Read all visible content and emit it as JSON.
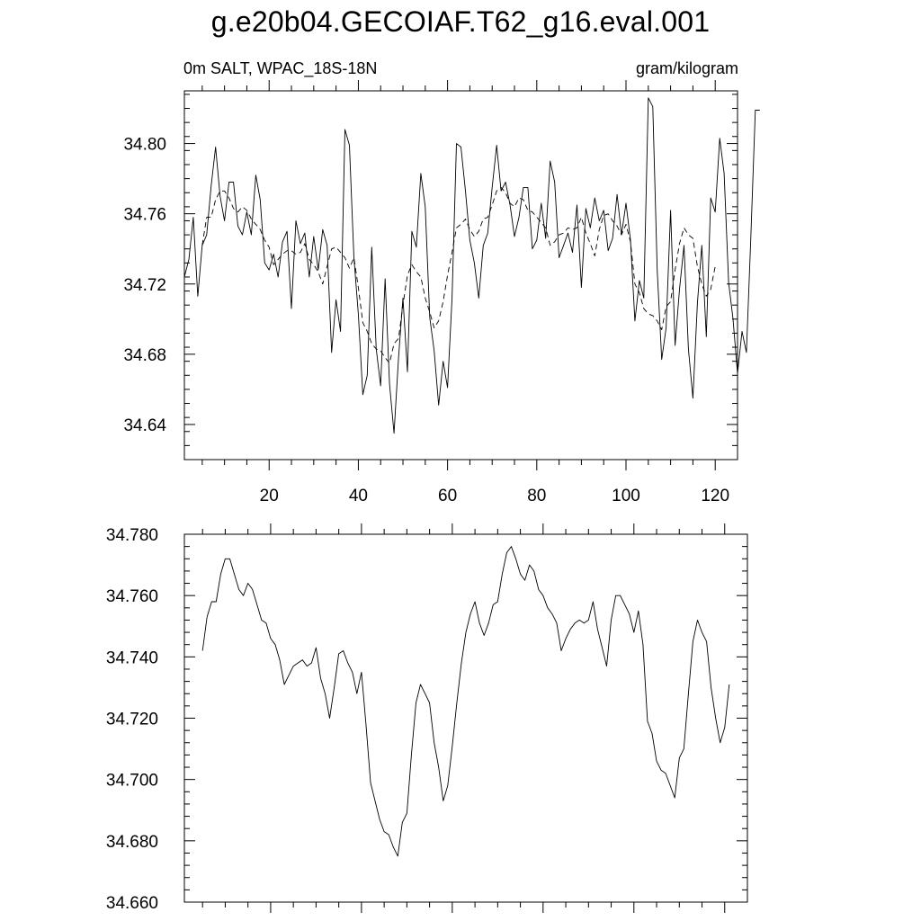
{
  "figure": {
    "title": "g.e20b04.GECOIAF.T62_g16.eval.001",
    "left_label": "0m SALT, WPAC_18S-18N",
    "right_label": "gram/kilogram"
  },
  "chart_data": [
    {
      "type": "line",
      "grid": false,
      "xlim": [
        1,
        125
      ],
      "ylim": [
        34.62,
        34.83
      ],
      "x_ticks": [
        20,
        40,
        60,
        80,
        100,
        120
      ],
      "y_ticks": [
        34.64,
        34.68,
        34.72,
        34.76,
        34.8
      ],
      "y_tick_labels": [
        "34.64",
        "34.68",
        "34.72",
        "34.76",
        "34.80"
      ],
      "x_start": 1,
      "series": [
        {
          "style": "solid",
          "values": [
            34.724,
            34.734,
            34.758,
            34.713,
            34.742,
            34.748,
            34.776,
            34.798,
            34.77,
            34.756,
            34.778,
            34.778,
            34.753,
            34.748,
            34.761,
            34.748,
            34.782,
            34.768,
            34.732,
            34.728,
            34.737,
            34.724,
            34.744,
            34.75,
            34.706,
            34.756,
            34.743,
            34.749,
            34.724,
            34.747,
            34.728,
            34.751,
            34.742,
            34.681,
            34.711,
            34.693,
            34.808,
            34.799,
            34.735,
            34.703,
            34.657,
            34.668,
            34.741,
            34.683,
            34.662,
            34.723,
            34.663,
            34.635,
            34.678,
            34.712,
            34.67,
            34.75,
            34.741,
            34.783,
            34.764,
            34.701,
            34.682,
            34.651,
            34.676,
            34.661,
            34.712,
            34.8,
            34.798,
            34.773,
            34.745,
            34.732,
            34.712,
            34.742,
            34.749,
            34.775,
            34.799,
            34.773,
            34.778,
            34.765,
            34.747,
            34.758,
            34.775,
            34.775,
            34.74,
            34.745,
            34.766,
            34.746,
            34.79,
            34.778,
            34.735,
            34.742,
            34.749,
            34.738,
            34.765,
            34.718,
            34.763,
            34.752,
            34.769,
            34.756,
            34.762,
            34.739,
            34.746,
            34.771,
            34.748,
            34.766,
            34.745,
            34.699,
            34.722,
            34.712,
            34.826,
            34.821,
            34.728,
            34.677,
            34.695,
            34.762,
            34.685,
            34.717,
            34.742,
            34.683,
            34.655,
            34.709,
            34.742,
            34.69,
            34.769,
            34.761,
            34.803,
            34.783,
            34.721,
            34.7,
            34.669,
            34.693,
            34.681,
            34.748,
            34.819,
            34.819
          ]
        },
        {
          "style": "dashed",
          "values": [
            null,
            null,
            null,
            null,
            34.742,
            34.758,
            34.758,
            34.768,
            34.773,
            34.773,
            34.769,
            34.763,
            34.761,
            34.764,
            34.762,
            34.757,
            34.754,
            34.751,
            34.745,
            34.741,
            34.731,
            34.734,
            34.737,
            34.739,
            34.739,
            34.737,
            34.738,
            34.743,
            34.734,
            34.731,
            34.727,
            34.72,
            34.73,
            34.74,
            34.741,
            34.738,
            34.735,
            34.729,
            34.735,
            34.718,
            34.698,
            34.693,
            34.686,
            34.683,
            34.682,
            34.678,
            34.675,
            34.686,
            34.689,
            34.708,
            34.725,
            34.731,
            34.727,
            34.724,
            34.712,
            34.704,
            34.695,
            34.699,
            34.71,
            34.725,
            34.738,
            34.752,
            34.754,
            34.757,
            34.751,
            34.747,
            34.75,
            34.757,
            34.758,
            34.765,
            34.773,
            34.775,
            34.772,
            34.766,
            34.764,
            34.769,
            34.768,
            34.762,
            34.761,
            34.758,
            34.755,
            34.752,
            34.742,
            34.744,
            34.748,
            34.749,
            34.752,
            34.751,
            34.752,
            34.758,
            34.749,
            34.743,
            34.736,
            34.751,
            34.759,
            34.76,
            34.756,
            34.753,
            34.748,
            34.754,
            34.744,
            34.72,
            34.715,
            34.706,
            34.703,
            34.702,
            34.699,
            34.694,
            34.707,
            34.71,
            34.728,
            34.743,
            34.752,
            34.748,
            34.746,
            34.73,
            34.72,
            34.713,
            34.717,
            34.73,
            null,
            null,
            null,
            null,
            null
          ]
        }
      ]
    },
    {
      "type": "line",
      "grid": false,
      "xlim": [
        1,
        125
      ],
      "ylim": [
        34.66,
        34.78
      ],
      "y_ticks": [
        34.66,
        34.68,
        34.7,
        34.72,
        34.74,
        34.76,
        34.78
      ],
      "y_tick_labels": [
        "34.660",
        "34.680",
        "34.700",
        "34.720",
        "34.740",
        "34.760",
        "34.780"
      ],
      "x_ticks": [
        20,
        40,
        60,
        80,
        100,
        120
      ],
      "x_start": 1,
      "series": [
        {
          "style": "solid",
          "values": [
            null,
            null,
            null,
            null,
            34.742,
            34.753,
            34.758,
            34.758,
            34.767,
            34.772,
            34.772,
            34.767,
            34.762,
            34.76,
            34.764,
            34.762,
            34.757,
            34.752,
            34.751,
            34.746,
            34.744,
            34.739,
            34.731,
            34.734,
            34.737,
            34.738,
            34.739,
            34.737,
            34.738,
            34.743,
            34.733,
            34.728,
            34.72,
            34.73,
            34.741,
            34.742,
            34.738,
            34.735,
            34.728,
            34.735,
            34.718,
            34.699,
            34.693,
            34.687,
            34.683,
            34.682,
            34.678,
            34.675,
            34.686,
            34.689,
            34.708,
            34.725,
            34.731,
            34.728,
            34.725,
            34.712,
            34.704,
            34.693,
            34.698,
            34.711,
            34.725,
            34.738,
            34.748,
            34.754,
            34.758,
            34.751,
            34.747,
            34.751,
            34.757,
            34.758,
            34.767,
            34.774,
            34.776,
            34.772,
            34.767,
            34.765,
            34.77,
            34.768,
            34.762,
            34.76,
            34.756,
            34.754,
            34.751,
            34.742,
            34.746,
            34.749,
            34.751,
            34.752,
            34.751,
            34.752,
            34.758,
            34.749,
            34.743,
            34.737,
            34.752,
            34.76,
            34.76,
            34.757,
            34.754,
            34.748,
            34.755,
            34.744,
            34.719,
            34.715,
            34.706,
            34.703,
            34.702,
            34.698,
            34.694,
            34.707,
            34.71,
            34.728,
            34.745,
            34.752,
            34.748,
            34.745,
            34.73,
            34.72,
            34.712,
            34.717,
            34.731,
            null,
            null,
            null,
            null
          ]
        }
      ]
    }
  ]
}
